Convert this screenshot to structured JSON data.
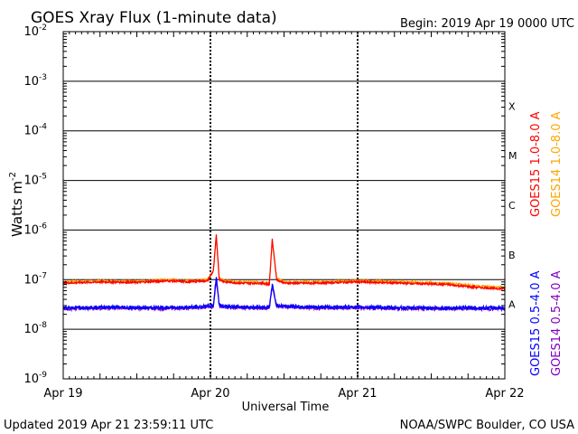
{
  "header": {
    "title": "GOES Xray Flux (1-minute data)",
    "begin": "Begin:  2019 Apr 19 0000 UTC"
  },
  "footer": {
    "updated": "Updated 2019 Apr 21 23:59:11 UTC",
    "credit": "NOAA/SWPC Boulder, CO USA"
  },
  "colors": {
    "goes15_long": "#ff0000",
    "goes14_long": "#ffa500",
    "goes15_short": "#0000ff",
    "goes14_short": "#8000c0",
    "grid": "#000000"
  },
  "chart_data": {
    "type": "line",
    "title": "GOES Xray Flux (1-minute data)",
    "xlabel": "Universal Time",
    "ylabel": "Watts m",
    "ylabel_sup": "-2",
    "yscale": "log",
    "ylim": [
      1e-09,
      0.01
    ],
    "y_ticks": [
      {
        "exp": -2,
        "label": "-2"
      },
      {
        "exp": -3,
        "label": "-3"
      },
      {
        "exp": -4,
        "label": "-4"
      },
      {
        "exp": -5,
        "label": "-5"
      },
      {
        "exp": -6,
        "label": "-6"
      },
      {
        "exp": -7,
        "label": "-7"
      },
      {
        "exp": -8,
        "label": "-8"
      },
      {
        "exp": -9,
        "label": "-9"
      }
    ],
    "x_ticks": [
      {
        "day": 0,
        "label": "Apr 19"
      },
      {
        "day": 1,
        "label": "Apr 20"
      },
      {
        "day": 2,
        "label": "Apr 21"
      },
      {
        "day": 3,
        "label": "Apr 22"
      }
    ],
    "flare_classes": [
      {
        "label": "X",
        "exp": -4
      },
      {
        "label": "M",
        "exp": -5
      },
      {
        "label": "C",
        "exp": -6
      },
      {
        "label": "B",
        "exp": -7
      },
      {
        "label": "A",
        "exp": -8
      }
    ],
    "grid": true,
    "legend": "right",
    "series": [
      {
        "name": "GOES15 1.0-8.0 A",
        "color": "#ff0000",
        "x": [
          0,
          0.25,
          0.5,
          0.7,
          0.85,
          0.98,
          1.02,
          1.04,
          1.06,
          1.1,
          1.2,
          1.35,
          1.4,
          1.42,
          1.45,
          1.5,
          1.7,
          2.0,
          2.3,
          2.6,
          2.8,
          3.0
        ],
        "y": [
          8.5e-08,
          9e-08,
          8.8e-08,
          9.5e-08,
          9e-08,
          9.5e-08,
          1.5e-07,
          8e-07,
          1e-07,
          9e-08,
          8.5e-08,
          8.5e-08,
          8e-08,
          6.5e-07,
          1e-07,
          8.5e-08,
          8.5e-08,
          9e-08,
          8.5e-08,
          8e-08,
          7e-08,
          6.5e-08
        ]
      },
      {
        "name": "GOES14 1.0-8.0 A",
        "color": "#ffa500",
        "x": [
          0,
          0.25,
          0.5,
          0.7,
          0.85,
          0.98,
          1.02,
          1.04,
          1.06,
          1.1,
          1.2,
          1.35,
          1.4,
          1.42,
          1.45,
          1.5,
          1.7,
          2.0,
          2.3,
          2.6,
          2.8,
          3.0
        ],
        "y": [
          9e-08,
          9.5e-08,
          9.2e-08,
          1e-07,
          9.5e-08,
          1e-07,
          1.5e-07,
          7e-07,
          1.05e-07,
          9.5e-08,
          9e-08,
          9e-08,
          8.5e-08,
          6e-07,
          1.05e-07,
          9e-08,
          9e-08,
          9.5e-08,
          9e-08,
          8.5e-08,
          7.5e-08,
          7e-08
        ]
      },
      {
        "name": "GOES15 0.5-4.0 A",
        "color": "#0000ff",
        "x": [
          0,
          0.3,
          0.6,
          0.9,
          1.02,
          1.04,
          1.06,
          1.2,
          1.4,
          1.42,
          1.45,
          1.7,
          2.0,
          2.4,
          2.7,
          3.0
        ],
        "y": [
          2.7e-08,
          2.8e-08,
          2.7e-08,
          2.8e-08,
          3e-08,
          1.2e-07,
          3e-08,
          2.8e-08,
          2.8e-08,
          8e-08,
          3e-08,
          2.8e-08,
          2.8e-08,
          2.7e-08,
          2.7e-08,
          2.7e-08
        ]
      },
      {
        "name": "GOES14 0.5-4.0 A",
        "color": "#8000c0",
        "x": [
          0,
          0.3,
          0.6,
          0.9,
          1.02,
          1.04,
          1.06,
          1.2,
          1.4,
          1.42,
          1.45,
          1.7,
          2.0,
          2.4,
          2.7,
          3.0
        ],
        "y": [
          2.6e-08,
          2.7e-08,
          2.6e-08,
          2.7e-08,
          2.9e-08,
          1e-07,
          2.9e-08,
          2.7e-08,
          2.7e-08,
          7e-08,
          2.9e-08,
          2.7e-08,
          2.7e-08,
          2.6e-08,
          2.6e-08,
          2.6e-08
        ]
      }
    ]
  }
}
